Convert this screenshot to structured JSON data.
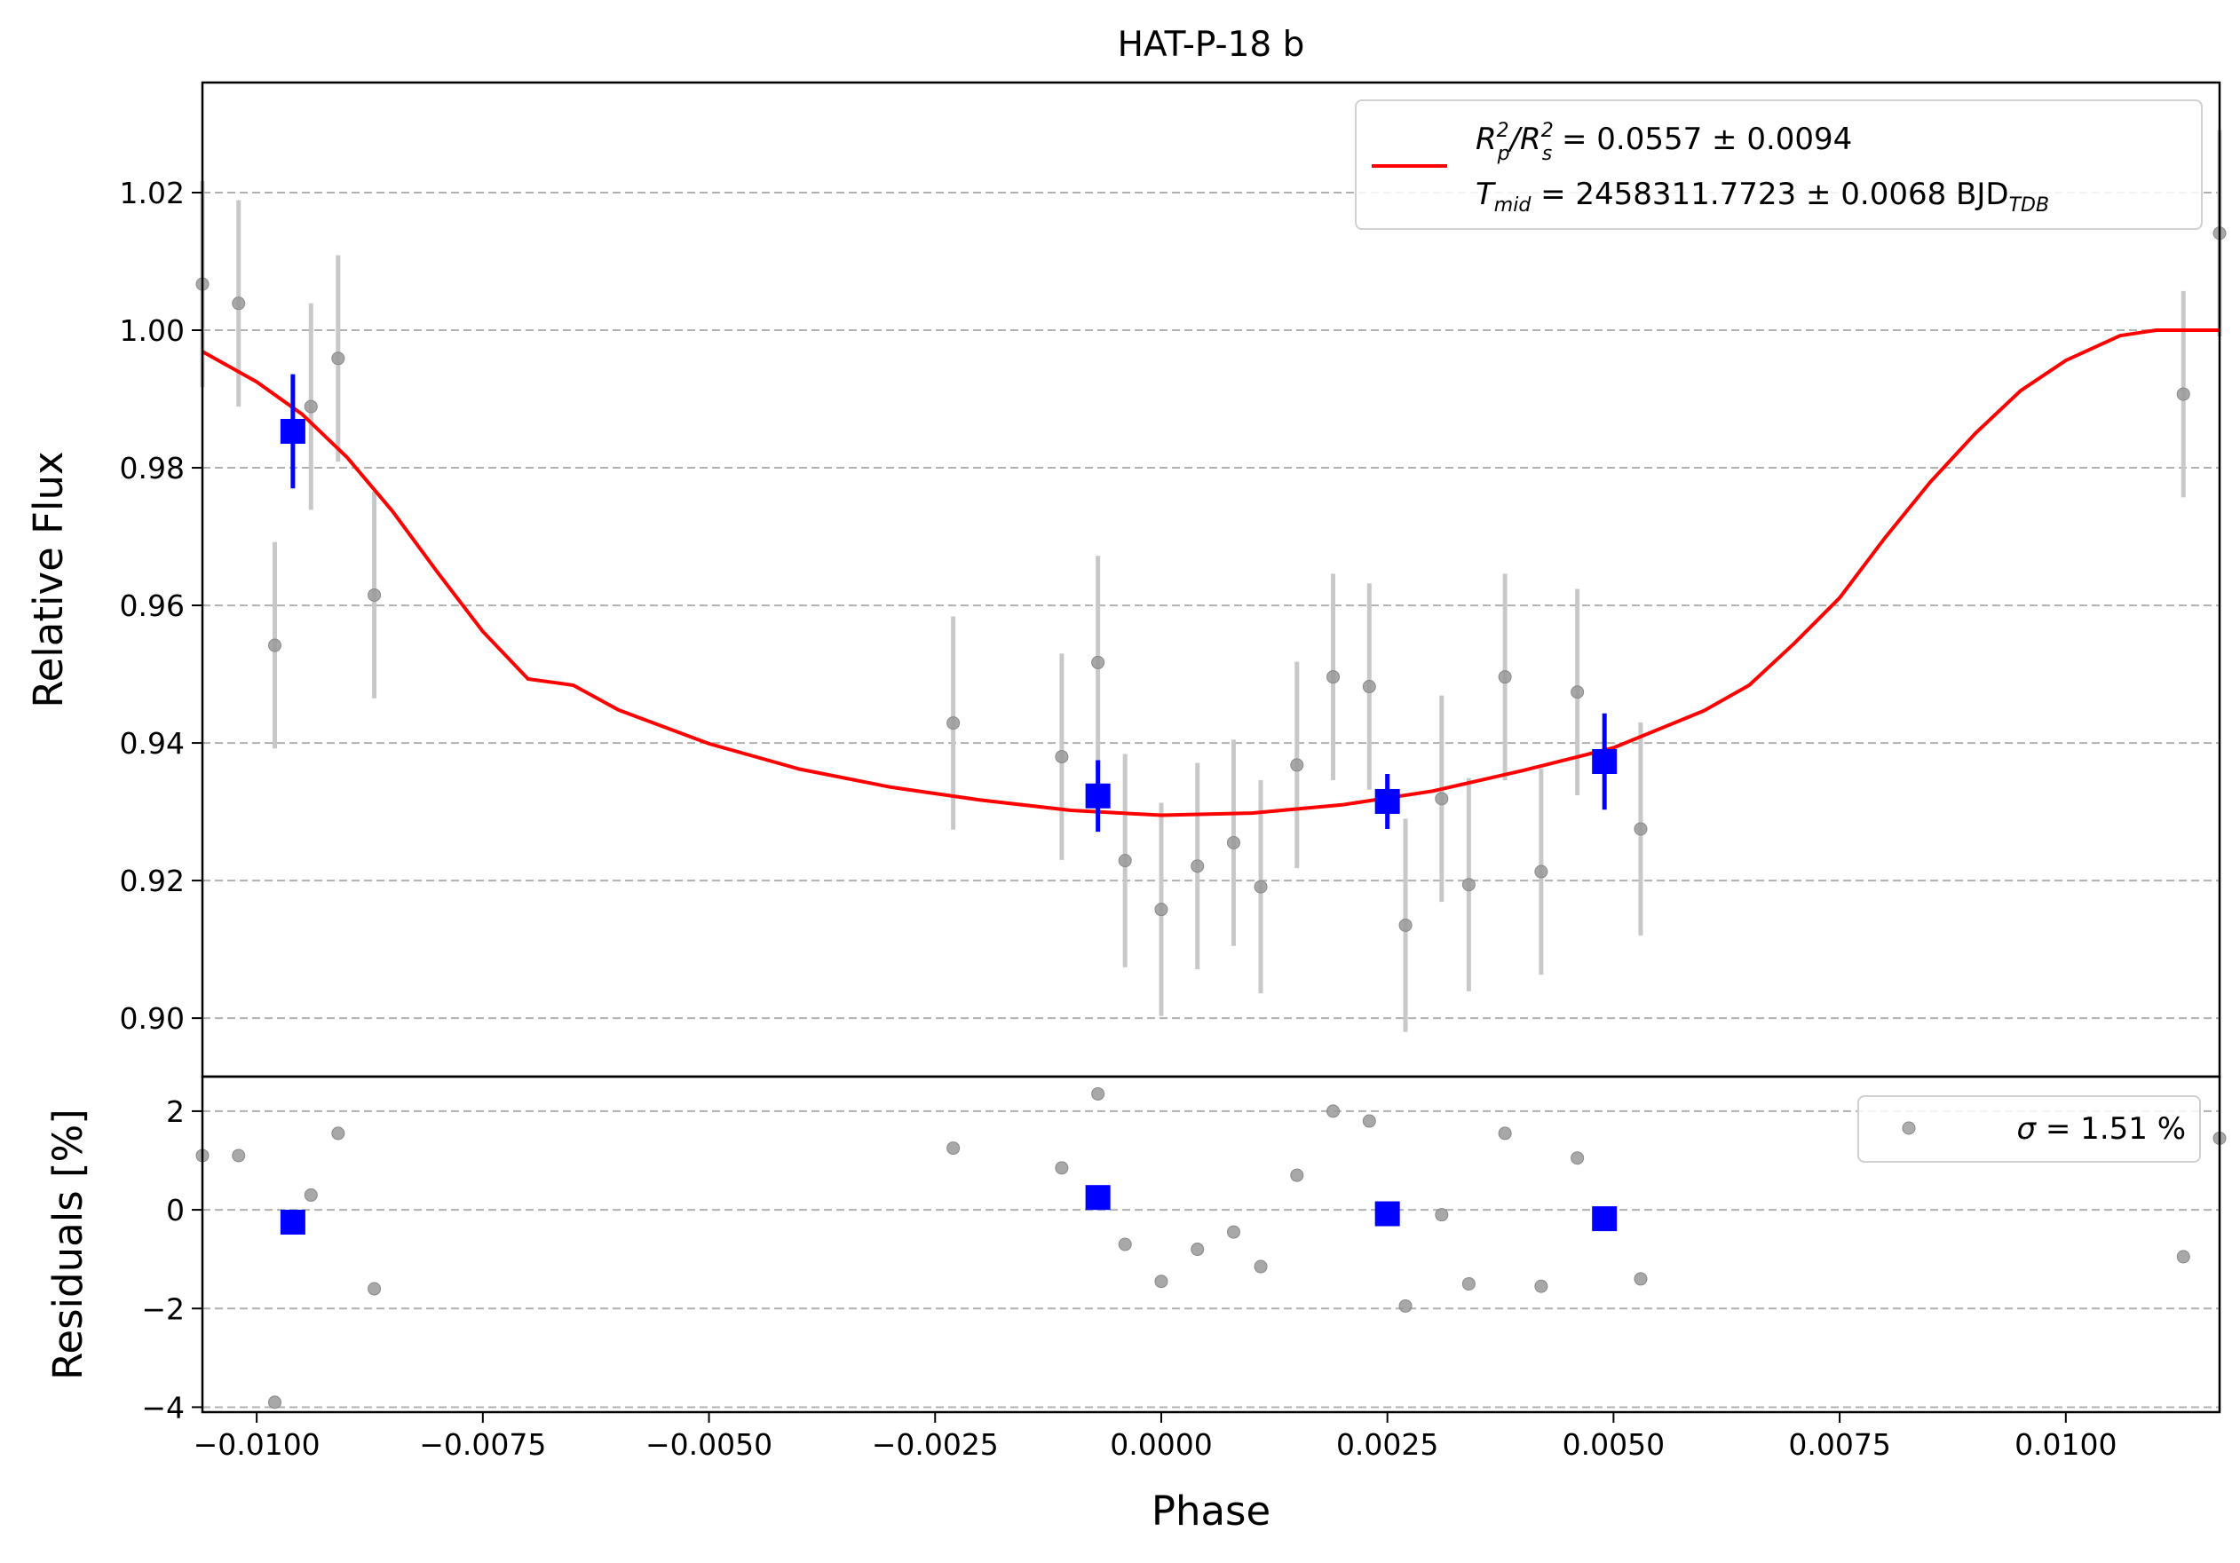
{
  "chart_data": {
    "type": "scatter",
    "title": "HAT-P-18 b",
    "xlabel": "Phase",
    "xlim": [
      -0.0106,
      0.0117
    ],
    "x_ticks": [
      -0.01,
      -0.0075,
      -0.005,
      -0.0025,
      0.0,
      0.0025,
      0.005,
      0.0075,
      0.01
    ],
    "x_tick_labels": [
      "−0.0100",
      "−0.0075",
      "−0.0050",
      "−0.0025",
      "0.0000",
      "0.0025",
      "0.0050",
      "0.0075",
      "0.0100"
    ],
    "grid": "horizontal dashed",
    "colors": {
      "model": "#ff0000",
      "binned": "#0000ff",
      "raw": "#999999",
      "raw_err": "#c8c8c8",
      "grid": "#b0b0b0"
    },
    "top_panel": {
      "ylabel": "Relative Flux",
      "ylim": [
        0.8915,
        1.036
      ],
      "y_ticks": [
        0.9,
        0.92,
        0.94,
        0.96,
        0.98,
        1.0,
        1.02
      ],
      "y_tick_labels": [
        "0.90",
        "0.92",
        "0.94",
        "0.96",
        "0.98",
        "1.00",
        "1.02"
      ],
      "legend": {
        "placement": "top-right",
        "line1_pre": "R",
        "line1_sub1": "p",
        "line1_sup1": "2",
        "line1_mid": "/R",
        "line1_sub2": "s",
        "line1_sup2": "2",
        "line1_value": " = 0.0557 ± 0.0094",
        "line2_pre": "T",
        "line2_sub": "mid",
        "line2_value": " = 2458311.7723 ± 0.0068 BJD",
        "line2_unit_sub": "TDB"
      },
      "raw_data": {
        "x": [
          -0.0106,
          -0.0102,
          -0.0098,
          -0.0094,
          -0.0091,
          -0.0087,
          -0.0023,
          -0.0011,
          -0.0007,
          -0.0004,
          0.0,
          0.0004,
          0.0008,
          0.0011,
          0.0015,
          0.0019,
          0.0023,
          0.0027,
          0.0031,
          0.0034,
          0.0038,
          0.0042,
          0.0046,
          0.0053,
          0.0113,
          0.0117
        ],
        "y": [
          1.0067,
          1.0039,
          0.9542,
          0.9889,
          0.9959,
          0.9615,
          0.9429,
          0.938,
          0.9517,
          0.9229,
          0.9158,
          0.9221,
          0.9255,
          0.9191,
          0.9368,
          0.9496,
          0.9482,
          0.9135,
          0.9319,
          0.9194,
          0.9496,
          0.9213,
          0.9474,
          0.9275,
          0.9907,
          1.0141
        ],
        "yerr": [
          0.015,
          0.015,
          0.015,
          0.015,
          0.015,
          0.015,
          0.0155,
          0.015,
          0.0155,
          0.0155,
          0.0155,
          0.015,
          0.015,
          0.0155,
          0.015,
          0.015,
          0.015,
          0.0155,
          0.015,
          0.0155,
          0.015,
          0.015,
          0.015,
          0.0155,
          0.015,
          0.015
        ]
      },
      "binned_data": {
        "x": [
          -0.0096,
          -0.0007,
          0.0025,
          0.0049
        ],
        "y": [
          0.9853,
          0.9323,
          0.9315,
          0.9373
        ],
        "yerr": [
          0.0083,
          0.0052,
          0.004,
          0.007
        ]
      },
      "model": {
        "x": [
          -0.0106,
          -0.01,
          -0.0095,
          -0.009,
          -0.0085,
          -0.008,
          -0.0075,
          -0.007,
          -0.0065,
          -0.006,
          -0.005,
          -0.004,
          -0.003,
          -0.002,
          -0.001,
          0.0,
          0.001,
          0.002,
          0.003,
          0.004,
          0.005,
          0.006,
          0.0065,
          0.007,
          0.0075,
          0.008,
          0.0085,
          0.009,
          0.0095,
          0.01,
          0.0106,
          0.011,
          0.0117
        ],
        "y": [
          0.9969,
          0.9925,
          0.9878,
          0.9815,
          0.9737,
          0.9648,
          0.9562,
          0.9493,
          0.9484,
          0.9448,
          0.9399,
          0.9362,
          0.9336,
          0.9317,
          0.9302,
          0.9295,
          0.9298,
          0.931,
          0.933,
          0.936,
          0.9393,
          0.9447,
          0.9484,
          0.9545,
          0.9611,
          0.9698,
          0.9779,
          0.985,
          0.9912,
          0.9956,
          0.9992,
          1.0,
          1.0
        ]
      }
    },
    "bottom_panel": {
      "ylabel": "Residuals [%]",
      "ylim": [
        -4.1,
        2.7
      ],
      "y_ticks": [
        -4,
        -2,
        0,
        2
      ],
      "y_tick_labels": [
        "−4",
        "−2",
        "0",
        "2"
      ],
      "legend": {
        "placement": "top-right",
        "sigma_symbol": "σ",
        "text": " = 1.51 %"
      },
      "raw_residuals": {
        "x": [
          -0.0106,
          -0.0102,
          -0.0098,
          -0.0094,
          -0.0091,
          -0.0087,
          -0.0023,
          -0.0011,
          -0.0007,
          -0.0004,
          0.0,
          0.0004,
          0.0008,
          0.0011,
          0.0015,
          0.0019,
          0.0023,
          0.0027,
          0.0031,
          0.0034,
          0.0038,
          0.0042,
          0.0046,
          0.0053,
          0.0113,
          0.0117
        ],
        "y": [
          1.1,
          1.1,
          -3.9,
          0.3,
          1.55,
          -1.6,
          1.25,
          0.85,
          2.35,
          -0.7,
          -1.45,
          -0.8,
          -0.45,
          -1.15,
          0.7,
          2.0,
          1.8,
          -1.95,
          -0.1,
          -1.5,
          1.55,
          -1.55,
          1.05,
          -1.4,
          -0.95,
          1.45
        ]
      },
      "binned_residuals": {
        "x": [
          -0.0096,
          -0.0007,
          0.0025,
          0.0049
        ],
        "y": [
          -0.25,
          0.25,
          -0.08,
          -0.18
        ]
      }
    }
  }
}
